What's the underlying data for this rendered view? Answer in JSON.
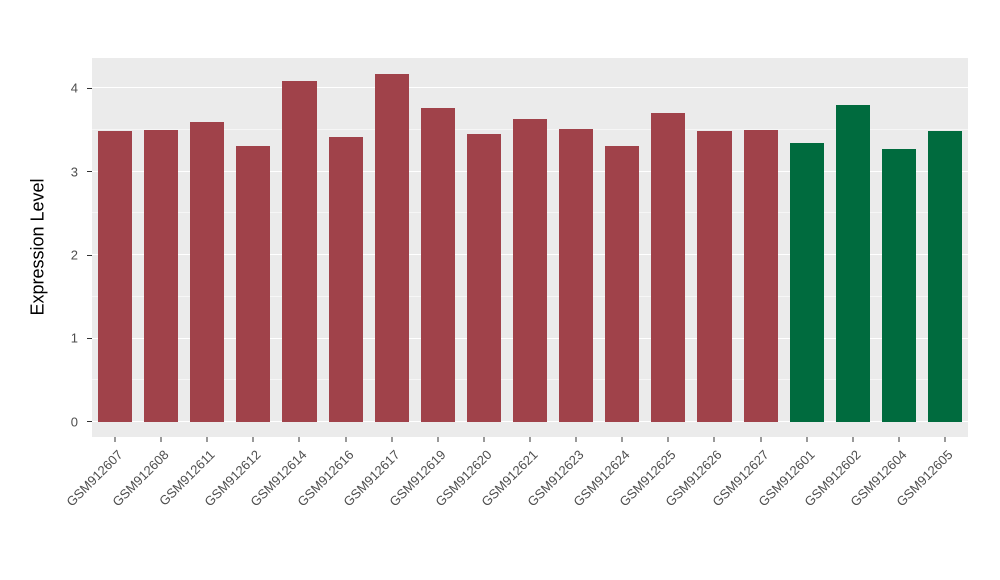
{
  "chart_data": {
    "type": "bar",
    "title": "",
    "xlabel": "",
    "ylabel": "Expression Level",
    "ylim": [
      0,
      4.36
    ],
    "ydisplay": [
      -0.18,
      4.36
    ],
    "yticks": [
      0,
      1,
      2,
      3,
      4
    ],
    "grid": "white major and minor horizontal gridlines on gray panel",
    "legend": "none",
    "panel_bg": "#EBEBEB",
    "categories": [
      "GSM912607",
      "GSM912608",
      "GSM912611",
      "GSM912612",
      "GSM912614",
      "GSM912616",
      "GSM912617",
      "GSM912619",
      "GSM912620",
      "GSM912621",
      "GSM912623",
      "GSM912624",
      "GSM912625",
      "GSM912626",
      "GSM912627",
      "GSM912601",
      "GSM912602",
      "GSM912604",
      "GSM912605"
    ],
    "values": [
      3.49,
      3.5,
      3.59,
      3.31,
      4.08,
      3.41,
      4.17,
      3.76,
      3.45,
      3.63,
      3.51,
      3.31,
      3.7,
      3.49,
      3.5,
      3.34,
      3.8,
      3.27,
      3.49
    ],
    "groups": [
      "group1",
      "group1",
      "group1",
      "group1",
      "group1",
      "group1",
      "group1",
      "group1",
      "group1",
      "group1",
      "group1",
      "group1",
      "group1",
      "group1",
      "group1",
      "group2",
      "group2",
      "group2",
      "group2"
    ],
    "group_colors": {
      "group1": "#A0424A",
      "group2": "#006B3E"
    }
  }
}
